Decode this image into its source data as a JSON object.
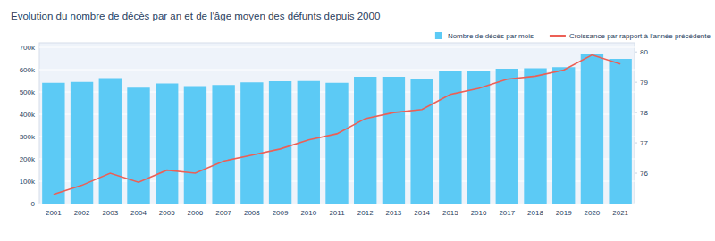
{
  "chart_data": {
    "type": "bar",
    "title": "Evolution du nombre de décès par an et de l'âge moyen des défunts depuis 2000",
    "categories": [
      "2001",
      "2002",
      "2003",
      "2004",
      "2005",
      "2006",
      "2007",
      "2008",
      "2009",
      "2010",
      "2011",
      "2012",
      "2013",
      "2014",
      "2015",
      "2016",
      "2017",
      "2018",
      "2019",
      "2020",
      "2021"
    ],
    "series": [
      {
        "name": "Nombre de décès par mois",
        "type": "bar",
        "color": "#5ccaf5",
        "values": [
          541000,
          545000,
          562000,
          519000,
          538000,
          526000,
          531000,
          543000,
          548000,
          549000,
          541000,
          568000,
          568000,
          557000,
          592000,
          592000,
          604000,
          606000,
          611000,
          668000,
          648000
        ]
      },
      {
        "name": "Croissance par rapport à l'année précédente",
        "type": "line",
        "axis": "y2",
        "color": "#ec5f55",
        "values": [
          75.3,
          75.6,
          76.0,
          75.7,
          76.1,
          76.0,
          76.4,
          76.6,
          76.8,
          77.1,
          77.3,
          77.8,
          78.0,
          78.1,
          78.6,
          78.8,
          79.1,
          79.2,
          79.4,
          79.9,
          79.6
        ]
      }
    ],
    "ylim": [
      0,
      720000
    ],
    "yticks": [
      0,
      {
        "value": 100000,
        "label": "100k"
      },
      {
        "value": 200000,
        "label": "200k"
      },
      {
        "value": 300000,
        "label": "300k"
      },
      {
        "value": 400000,
        "label": "400k"
      },
      {
        "value": 500000,
        "label": "500k"
      },
      {
        "value": 600000,
        "label": "600k"
      },
      {
        "value": 700000,
        "label": "700k"
      }
    ],
    "y2lim": [
      75,
      80.3
    ],
    "y2ticks": [
      76,
      77,
      78,
      79,
      80
    ],
    "grid": true,
    "legend": "top-right"
  }
}
